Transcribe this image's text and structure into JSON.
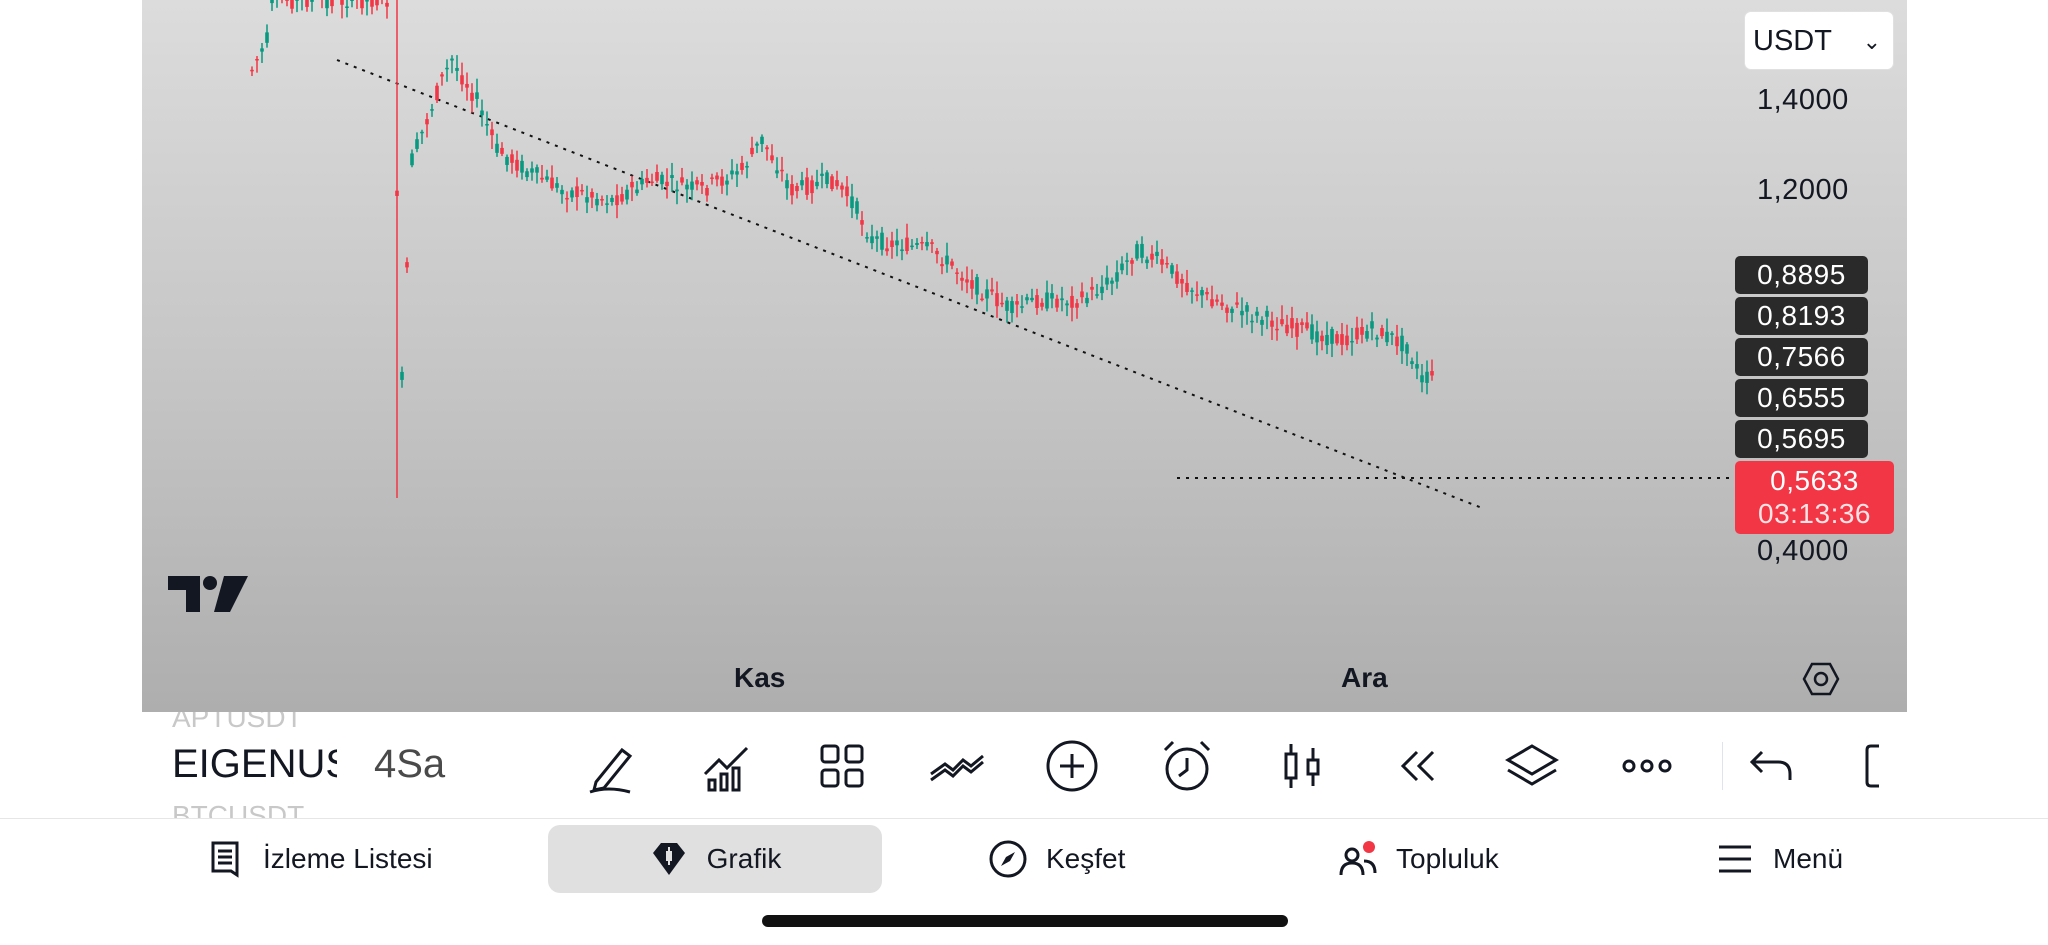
{
  "chart": {
    "currency": "USDT",
    "price_axis": [
      "1,4000",
      "1,2000",
      "0,4000"
    ],
    "price_labels": [
      "0,8895",
      "0,8193",
      "0,7566",
      "0,6555",
      "0,5695"
    ],
    "current_price": "0,5633",
    "countdown": "03:13:36",
    "time_labels": [
      "Kas",
      "Ara"
    ],
    "colors": {
      "up": "#089981",
      "down": "#f23645"
    }
  },
  "toolbar": {
    "symbol": "EIGENUSDT",
    "symbol_prev": "APTUSDT",
    "symbol_next": "BTCUSDT",
    "interval": "4Sa",
    "tools": [
      "draw-icon",
      "indicators-icon",
      "layout-grid-icon",
      "compare-icon",
      "add-icon",
      "alert-icon",
      "chart-type-icon",
      "replay-icon",
      "layers-icon",
      "more-icon",
      "undo-icon",
      "fullscreen-icon"
    ]
  },
  "nav": {
    "items": [
      {
        "label": "İzleme Listesi",
        "icon": "watchlist-icon"
      },
      {
        "label": "Grafik",
        "icon": "chart-icon"
      },
      {
        "label": "Keşfet",
        "icon": "compass-icon"
      },
      {
        "label": "Topluluk",
        "icon": "community-icon"
      },
      {
        "label": "Menü",
        "icon": "menu-icon"
      }
    ],
    "active": "Grafik"
  }
}
